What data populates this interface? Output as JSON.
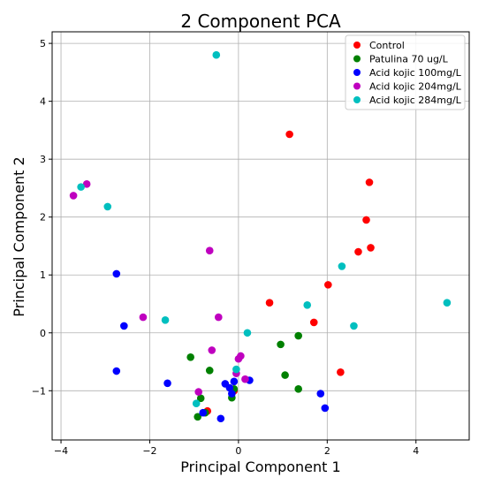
{
  "chart_data": {
    "type": "scatter",
    "title": "2 Component PCA",
    "xlabel": "Principal Component 1",
    "ylabel": "Principal Component 2",
    "xlim": [
      -4.2,
      5.2
    ],
    "ylim": [
      -1.85,
      5.2
    ],
    "xticks": [
      -4,
      -2,
      0,
      2,
      4
    ],
    "yticks": [
      -1,
      0,
      1,
      2,
      3,
      4,
      5
    ],
    "grid": true,
    "legend_position": "top-right",
    "series": [
      {
        "name": "Control",
        "color": "#ff0000",
        "points": [
          [
            1.15,
            3.43
          ],
          [
            2.95,
            2.6
          ],
          [
            2.88,
            1.95
          ],
          [
            2.98,
            1.47
          ],
          [
            2.7,
            1.4
          ],
          [
            2.02,
            0.83
          ],
          [
            0.7,
            0.52
          ],
          [
            1.7,
            0.18
          ],
          [
            2.3,
            -0.68
          ],
          [
            -0.7,
            -1.35
          ],
          [
            -0.1,
            -1.0
          ]
        ]
      },
      {
        "name": "Patulina 70 ug/L",
        "color": "#008000",
        "points": [
          [
            1.35,
            -0.05
          ],
          [
            0.95,
            -0.2
          ],
          [
            -1.08,
            -0.42
          ],
          [
            -0.65,
            -0.65
          ],
          [
            1.05,
            -0.73
          ],
          [
            1.35,
            -0.97
          ],
          [
            -0.85,
            -1.13
          ],
          [
            -0.15,
            -1.12
          ],
          [
            -0.92,
            -1.45
          ],
          [
            -0.75,
            -1.38
          ],
          [
            -0.1,
            -0.97
          ]
        ]
      },
      {
        "name": "Acid kojic 100mg/L",
        "color": "#0000ff",
        "points": [
          [
            -2.75,
            1.02
          ],
          [
            -2.58,
            0.12
          ],
          [
            -2.75,
            -0.66
          ],
          [
            -1.6,
            -0.87
          ],
          [
            -0.1,
            -0.84
          ],
          [
            -0.3,
            -0.88
          ],
          [
            -0.2,
            -0.95
          ],
          [
            0.25,
            -0.82
          ],
          [
            1.85,
            -1.05
          ],
          [
            1.95,
            -1.3
          ],
          [
            -0.4,
            -1.48
          ],
          [
            -0.8,
            -1.38
          ],
          [
            -0.15,
            -1.05
          ]
        ]
      },
      {
        "name": "Acid kojic 204mg/L",
        "color": "#bf00bf",
        "points": [
          [
            -3.72,
            2.37
          ],
          [
            -3.42,
            2.57
          ],
          [
            -2.15,
            0.27
          ],
          [
            -0.65,
            1.42
          ],
          [
            -0.45,
            0.27
          ],
          [
            -0.6,
            -0.3
          ],
          [
            0.05,
            -0.4
          ],
          [
            0.0,
            -0.45
          ],
          [
            0.15,
            -0.8
          ],
          [
            -0.9,
            -1.02
          ],
          [
            -0.05,
            -0.7
          ]
        ]
      },
      {
        "name": "Acid kojic 284mg/L",
        "color": "#00bfbf",
        "points": [
          [
            -0.5,
            4.8
          ],
          [
            -3.55,
            2.52
          ],
          [
            -2.95,
            2.18
          ],
          [
            2.33,
            1.15
          ],
          [
            1.55,
            0.48
          ],
          [
            -1.65,
            0.22
          ],
          [
            0.2,
            0.0
          ],
          [
            2.6,
            0.12
          ],
          [
            4.7,
            0.52
          ],
          [
            -0.05,
            -0.63
          ],
          [
            -0.95,
            -1.22
          ]
        ]
      }
    ]
  }
}
